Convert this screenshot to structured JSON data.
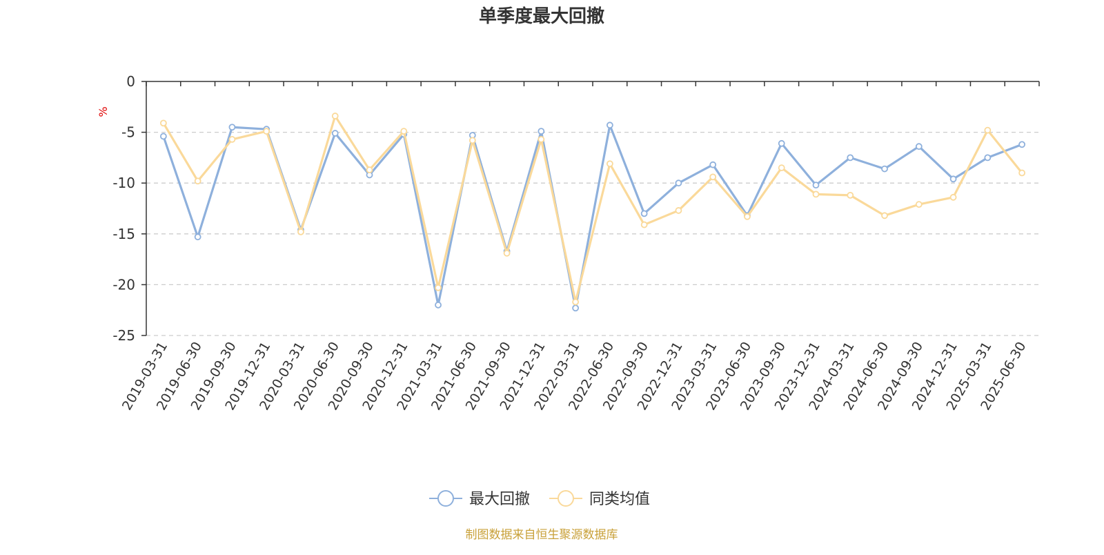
{
  "chart_data": {
    "type": "line",
    "title": "单季度最大回撤",
    "ylabel": "%",
    "ylim": [
      -25,
      0
    ],
    "yticks": [
      0,
      -5,
      -10,
      -15,
      -20,
      -25
    ],
    "grid": true,
    "legend_position": "bottom",
    "categories": [
      "2019-03-31",
      "2019-06-30",
      "2019-09-30",
      "2019-12-31",
      "2020-03-31",
      "2020-06-30",
      "2020-09-30",
      "2020-12-31",
      "2021-03-31",
      "2021-06-30",
      "2021-09-30",
      "2021-12-31",
      "2022-03-31",
      "2022-06-30",
      "2022-09-30",
      "2022-12-31",
      "2023-03-31",
      "2023-06-30",
      "2023-09-30",
      "2023-12-31",
      "2024-03-31",
      "2024-06-30",
      "2024-09-30",
      "2024-12-31",
      "2025-03-31",
      "2025-06-30"
    ],
    "series": [
      {
        "name": "最大回撤",
        "color": "#8eb0dc",
        "values": [
          -5.4,
          -15.3,
          -4.5,
          -4.7,
          -14.6,
          -5.1,
          -9.2,
          -5.2,
          -22.0,
          -5.3,
          -16.7,
          -4.9,
          -22.3,
          -4.3,
          -13.0,
          -10.0,
          -8.2,
          -13.2,
          -6.1,
          -10.2,
          -7.5,
          -8.6,
          -6.4,
          -9.6,
          -7.5,
          -6.2
        ]
      },
      {
        "name": "同类均值",
        "color": "#fad99a",
        "values": [
          -4.1,
          -9.8,
          -5.7,
          -4.9,
          -14.8,
          -3.4,
          -8.7,
          -4.9,
          -20.3,
          -5.8,
          -16.9,
          -5.7,
          -21.7,
          -8.1,
          -14.1,
          -12.7,
          -9.4,
          -13.3,
          -8.5,
          -11.1,
          -11.2,
          -13.2,
          -12.1,
          -11.4,
          -4.8,
          -9.0
        ]
      }
    ]
  },
  "footer": {
    "source": "制图数据来自恒生聚源数据库",
    "source_color": "#c9a13a"
  }
}
